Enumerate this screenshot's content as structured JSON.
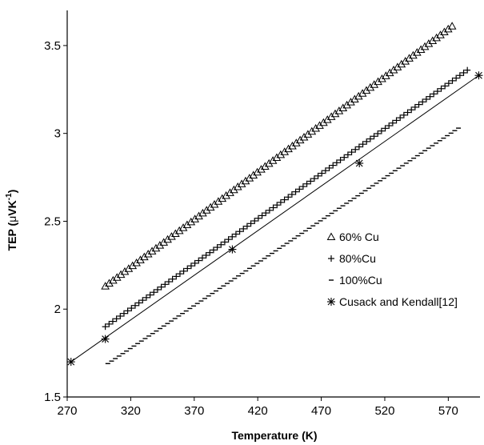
{
  "chart_data": {
    "type": "scatter",
    "title": "",
    "xlabel": "Temperature (K)",
    "ylabel": {
      "prefix": "TEP (",
      "mu": "μ",
      "unit": "VK",
      "sup": "-1",
      "suffix": ")"
    },
    "xlim": [
      270,
      600
    ],
    "ylim": [
      1.5,
      3.7
    ],
    "xticks": [
      270,
      320,
      370,
      420,
      470,
      520,
      570
    ],
    "yticks": [
      1.5,
      2,
      2.5,
      3,
      3.5
    ],
    "xtick_labels": [
      "270",
      "320",
      "370",
      "420",
      "470",
      "520",
      "570"
    ],
    "ytick_labels": [
      "1.5",
      "2",
      "2.5",
      "3",
      "3.5"
    ],
    "grid": false,
    "legend_position": "right",
    "series": [
      {
        "name": "60% Cu",
        "marker": "triangle",
        "x_range": [
          300,
          573
        ],
        "y_range": [
          2.13,
          3.61
        ],
        "n": 90
      },
      {
        "name": "80%Cu",
        "marker": "plus",
        "x_range": [
          300,
          585
        ],
        "y_range": [
          1.9,
          3.36
        ],
        "n": 98
      },
      {
        "name": "100%Cu",
        "marker": "dash",
        "x_range": [
          302,
          578
        ],
        "y_range": [
          1.69,
          3.03
        ],
        "n": 95
      },
      {
        "name": "Cusack and Kendall[12]",
        "marker": "asterisk",
        "x": [
          273,
          300,
          400,
          500,
          594
        ],
        "y": [
          1.7,
          1.83,
          2.34,
          2.83,
          3.33
        ],
        "fit_line": true
      }
    ]
  }
}
